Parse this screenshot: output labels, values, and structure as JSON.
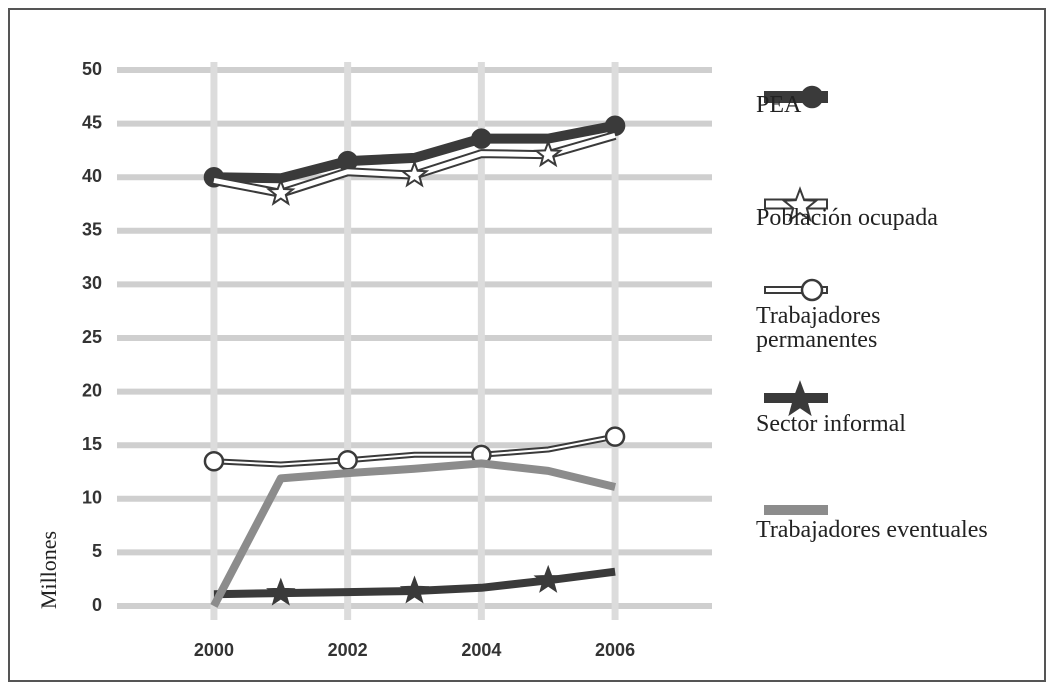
{
  "chart_data": {
    "type": "line",
    "y_label": "Millones",
    "x": [
      2000,
      2001,
      2002,
      2003,
      2004,
      2005,
      2006
    ],
    "xlim": [
      1998.55,
      2007.45
    ],
    "xticks": [
      2000,
      2002,
      2004,
      2006
    ],
    "ylim": [
      0,
      50
    ],
    "yticks": [
      0,
      5,
      10,
      15,
      20,
      25,
      30,
      35,
      40,
      45,
      50
    ],
    "grid": true,
    "legend": "right",
    "series": [
      {
        "name": "PEA",
        "color": "#3a3a3a",
        "marker": "circle",
        "values": [
          40,
          39.9,
          41.5,
          41.8,
          43.6,
          43.6,
          44.8
        ]
      },
      {
        "name": "Población ocupada",
        "color": "#3a3a3a",
        "fill": "#ffffff",
        "marker": "star",
        "values": [
          39.7,
          38.5,
          40.5,
          40.2,
          42.2,
          42.1,
          43.9
        ]
      },
      {
        "name": "Trabajadores permanentes",
        "color": "#3a3a3a",
        "fill": "#ffffff",
        "marker": "circle",
        "values": [
          13.5,
          13.2,
          13.6,
          14.1,
          14.1,
          14.6,
          15.8
        ]
      },
      {
        "name": "Sector informal",
        "color": "#3a3a3a",
        "marker": "star",
        "values": [
          1.1,
          1.2,
          1.3,
          1.4,
          1.7,
          2.4,
          3.2
        ]
      },
      {
        "name": "Trabajadores eventuales",
        "color": "#8c8c8c",
        "values": [
          0,
          11.9,
          12.4,
          12.8,
          13.3,
          12.6,
          11.1
        ]
      }
    ]
  }
}
